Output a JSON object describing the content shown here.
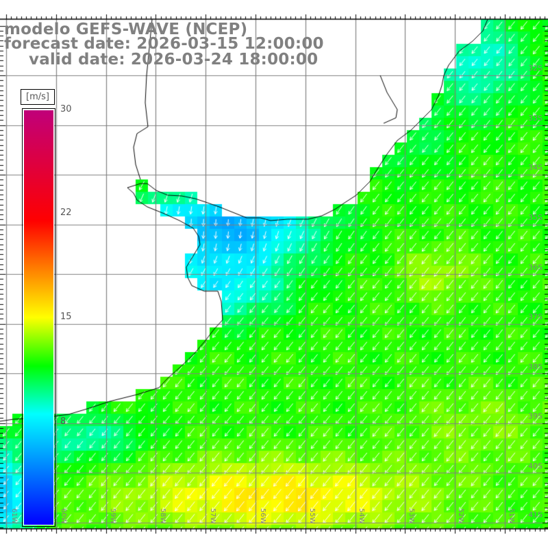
{
  "title": {
    "model": "modelo GEFS-WAVE (NCEP)",
    "forecast": "forecast date: 2026-03-15 12:00:00",
    "valid": "valid date: 2026-03-24 18:00:00"
  },
  "colorbar": {
    "unit": "[m/s]",
    "ticks": [
      "30",
      "22",
      "15",
      "8"
    ],
    "min": 0,
    "max": 30,
    "stops": [
      {
        "value": 0,
        "color": "#0000ff"
      },
      {
        "value": 8,
        "color": "#00ffff"
      },
      {
        "value": 11.5,
        "color": "#00ff00"
      },
      {
        "value": 15,
        "color": "#ffff00"
      },
      {
        "value": 22,
        "color": "#ff0000"
      },
      {
        "value": 30,
        "color": "#c0007a"
      }
    ]
  },
  "axes": {
    "lon_labels": [
      "61W",
      "60W",
      "59W",
      "58W",
      "57W",
      "56W",
      "55W",
      "54W",
      "53W",
      "52W",
      "51W"
    ],
    "lat_labels": [
      "32S",
      "33S",
      "34S",
      "35S",
      "36S",
      "37S",
      "38S",
      "39S",
      "40S",
      "41S"
    ]
  },
  "colors": {
    "land": "#ffffff",
    "coast": "#000000",
    "grid": "#808080",
    "arrow": "#ffffff",
    "text": "#808080"
  }
}
